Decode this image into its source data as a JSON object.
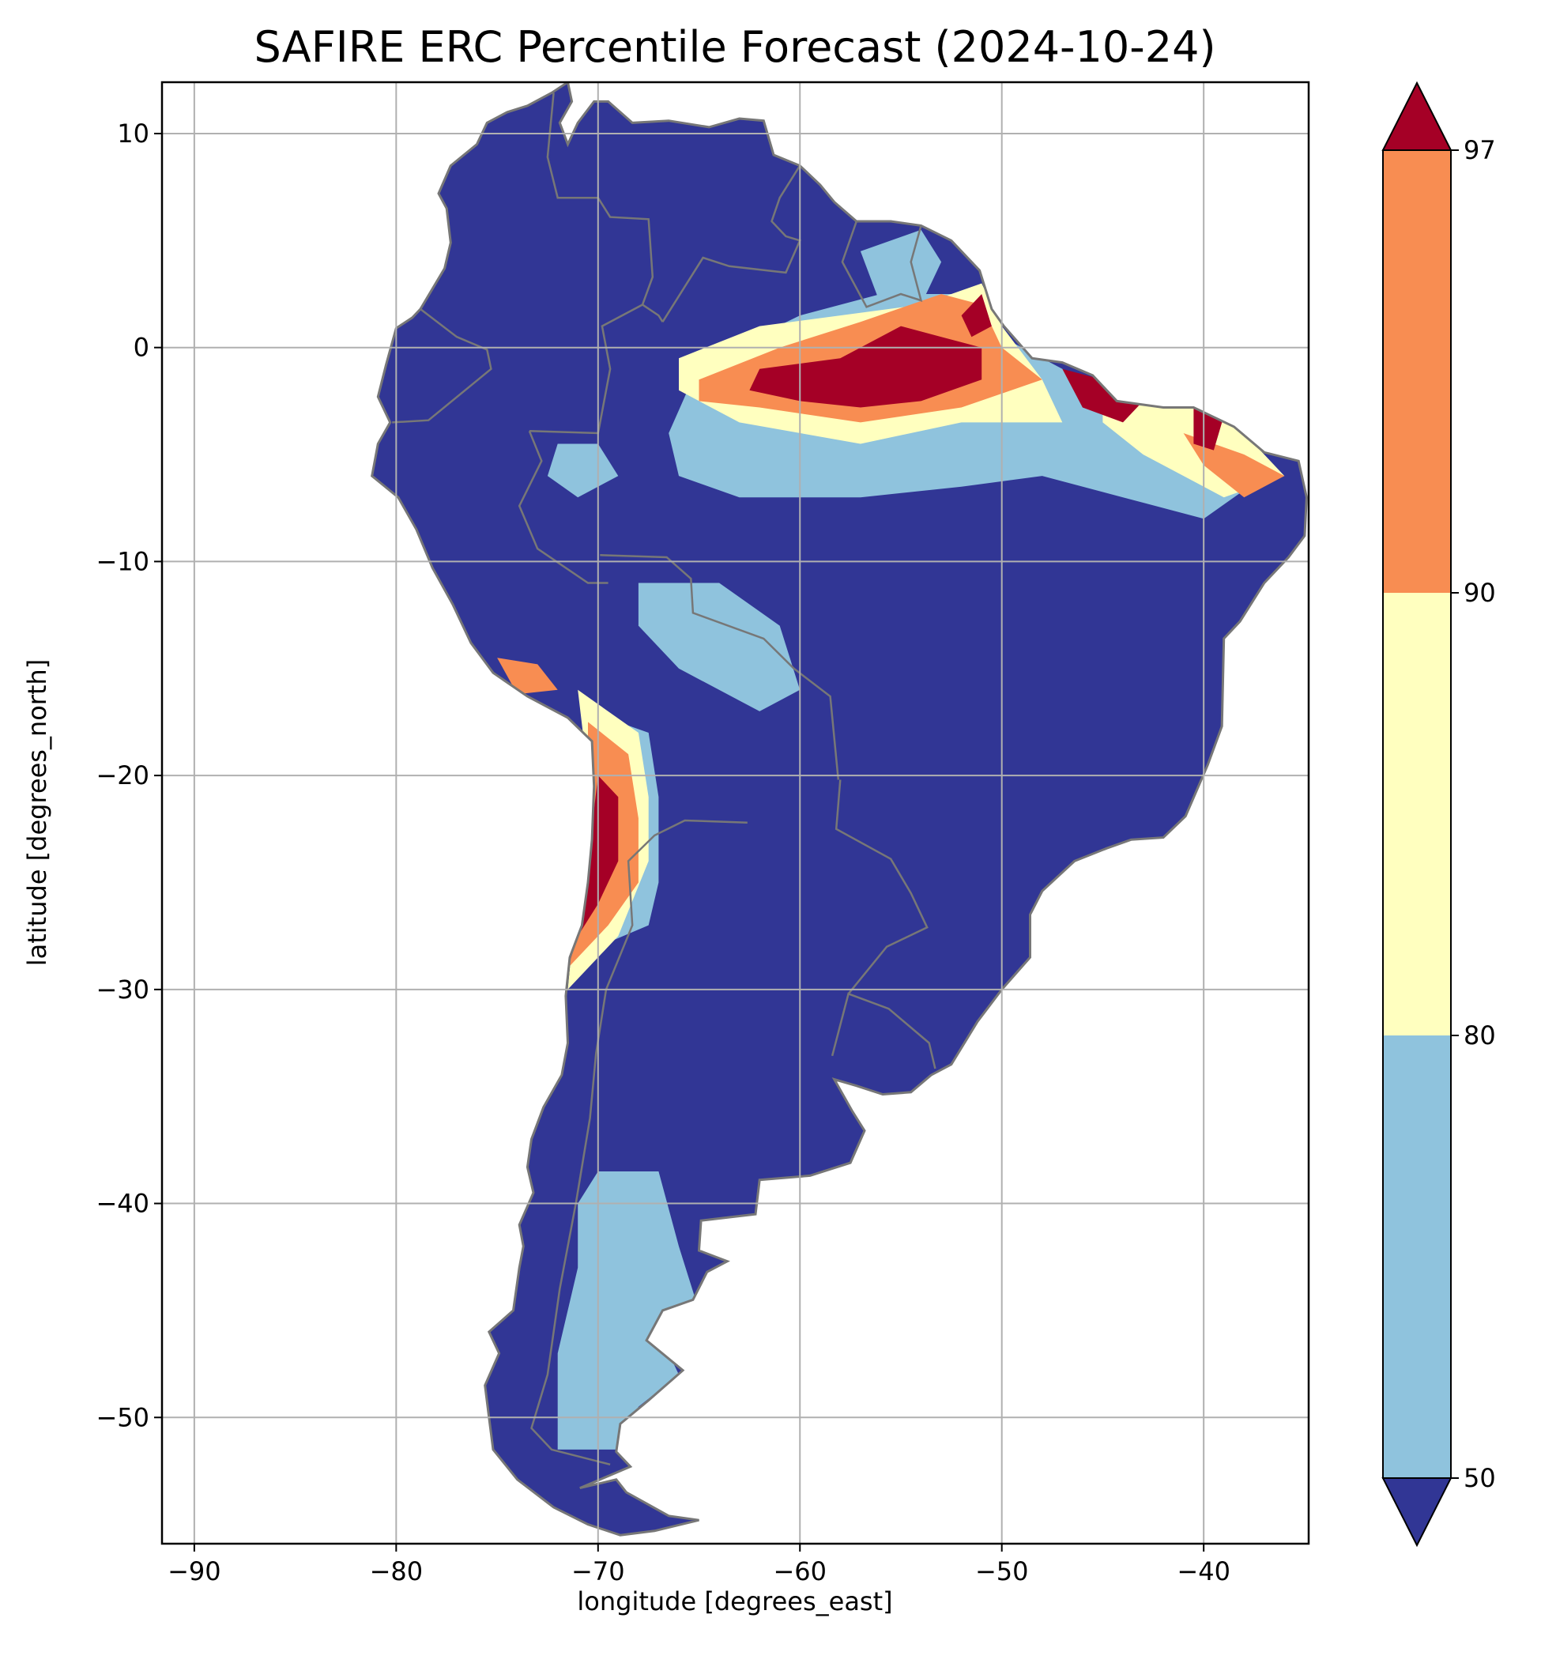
{
  "title": "SAFIRE ERC Percentile Forecast (2024-10-24)",
  "chart_data": {
    "type": "heatmap",
    "title": "SAFIRE ERC Percentile Forecast (2024-10-24)",
    "xlabel": "longitude [degrees_east]",
    "ylabel": "latitude [degrees_north]",
    "xlim": [
      -91.6,
      -34.8
    ],
    "ylim": [
      -55.9,
      12.4
    ],
    "x_ticks": [
      -90,
      -80,
      -70,
      -60,
      -50,
      -40
    ],
    "y_ticks": [
      10,
      0,
      -10,
      -20,
      -30,
      -40,
      -50
    ],
    "x_tick_labels": [
      "−90",
      "−80",
      "−70",
      "−60",
      "−50",
      "−40"
    ],
    "y_tick_labels": [
      "10",
      "0",
      "−10",
      "−20",
      "−30",
      "−40",
      "−50"
    ],
    "grid": true,
    "colorbar": {
      "levels": [
        50,
        80,
        90,
        97
      ],
      "tick_labels": [
        "50",
        "80",
        "90",
        "97"
      ],
      "extend": "both",
      "colors": {
        "below_50": "#313695",
        "50_80": "#8fc3dd",
        "80_90": "#ffffbf",
        "90_97": "#f88d52",
        "above_97": "#a50026"
      }
    },
    "land_default_class": "below_50",
    "coastline_color": "#777777",
    "regions": [
      {
        "class": "50_80",
        "name": "Amazon band",
        "points": [
          [
            -65,
            -0.8
          ],
          [
            -60,
            1.5
          ],
          [
            -56,
            2.5
          ],
          [
            -52,
            2.5
          ],
          [
            -50,
            0.5
          ],
          [
            -47,
            -1
          ],
          [
            -43,
            -2.5
          ],
          [
            -40,
            -3
          ],
          [
            -38,
            -4
          ],
          [
            -37,
            -6
          ],
          [
            -40,
            -8
          ],
          [
            -44,
            -7
          ],
          [
            -48,
            -6
          ],
          [
            -52,
            -6.5
          ],
          [
            -57,
            -7
          ],
          [
            -63,
            -7
          ],
          [
            -66,
            -6
          ],
          [
            -66.5,
            -4
          ]
        ]
      },
      {
        "class": "50_80",
        "name": "West Amazon patch",
        "points": [
          [
            -72,
            -4.5
          ],
          [
            -70,
            -4.5
          ],
          [
            -69,
            -6
          ],
          [
            -71,
            -7
          ],
          [
            -72.5,
            -6
          ]
        ]
      },
      {
        "class": "50_80",
        "name": "Guiana patch",
        "points": [
          [
            -57,
            4.5
          ],
          [
            -54,
            5.5
          ],
          [
            -53,
            4
          ],
          [
            -54,
            2
          ],
          [
            -56,
            2
          ]
        ]
      },
      {
        "class": "50_80",
        "name": "Bolivia patch",
        "points": [
          [
            -68,
            -11
          ],
          [
            -64,
            -11
          ],
          [
            -61,
            -13
          ],
          [
            -60,
            -16
          ],
          [
            -62,
            -17
          ],
          [
            -66,
            -15
          ],
          [
            -68,
            -13
          ]
        ]
      },
      {
        "class": "50_80",
        "name": "Patagonia",
        "points": [
          [
            -70,
            -38.5
          ],
          [
            -67,
            -38.5
          ],
          [
            -66,
            -42
          ],
          [
            -65,
            -45
          ],
          [
            -67,
            -46
          ],
          [
            -66,
            -48
          ],
          [
            -68,
            -49.5
          ],
          [
            -69,
            -51.5
          ],
          [
            -72,
            -51.5
          ],
          [
            -72,
            -47
          ],
          [
            -71,
            -43
          ],
          [
            -71,
            -40
          ]
        ]
      },
      {
        "class": "50_80",
        "name": "Andes flank",
        "points": [
          [
            -70.5,
            -17
          ],
          [
            -67.5,
            -18
          ],
          [
            -67,
            -21
          ],
          [
            -67,
            -25
          ],
          [
            -67.5,
            -27
          ],
          [
            -70,
            -28
          ],
          [
            -71.5,
            -29
          ],
          [
            -71,
            -25
          ],
          [
            -70.5,
            -21
          ]
        ]
      },
      {
        "class": "80_90",
        "name": "Amazon north band",
        "points": [
          [
            -66,
            -0.5
          ],
          [
            -62,
            1
          ],
          [
            -58,
            1.5
          ],
          [
            -54,
            2
          ],
          [
            -51,
            3
          ],
          [
            -50,
            1
          ],
          [
            -48,
            -1.5
          ],
          [
            -47,
            -3.5
          ],
          [
            -52,
            -3.5
          ],
          [
            -57,
            -4.5
          ],
          [
            -63,
            -3.5
          ],
          [
            -66,
            -2
          ]
        ]
      },
      {
        "class": "80_90",
        "name": "NE coast",
        "points": [
          [
            -45,
            -2
          ],
          [
            -41,
            -2.5
          ],
          [
            -38,
            -4
          ],
          [
            -36,
            -6
          ],
          [
            -39,
            -7
          ],
          [
            -43,
            -5
          ],
          [
            -45,
            -3.5
          ]
        ]
      },
      {
        "class": "80_90",
        "name": "Andes yellow",
        "points": [
          [
            -71,
            -16
          ],
          [
            -68,
            -18
          ],
          [
            -67.5,
            -21
          ],
          [
            -67.5,
            -24
          ],
          [
            -69,
            -27.5
          ],
          [
            -71.5,
            -30
          ],
          [
            -71,
            -25
          ],
          [
            -70.5,
            -20
          ]
        ]
      },
      {
        "class": "90_97",
        "name": "Amazon orange",
        "points": [
          [
            -65,
            -1.5
          ],
          [
            -61,
            0
          ],
          [
            -57,
            1.2
          ],
          [
            -53,
            2.5
          ],
          [
            -51,
            2
          ],
          [
            -50,
            0
          ],
          [
            -48,
            -1.5
          ],
          [
            -52,
            -2.8
          ],
          [
            -57,
            -3.5
          ],
          [
            -62,
            -2.8
          ],
          [
            -65,
            -2.5
          ]
        ]
      },
      {
        "class": "90_97",
        "name": "Andes orange",
        "points": [
          [
            -70.5,
            -17.5
          ],
          [
            -68.5,
            -19
          ],
          [
            -68,
            -22
          ],
          [
            -68,
            -25
          ],
          [
            -69.5,
            -27
          ],
          [
            -71.5,
            -29
          ],
          [
            -70.8,
            -24
          ],
          [
            -70.5,
            -20
          ]
        ]
      },
      {
        "class": "90_97",
        "name": "Peru coast",
        "points": [
          [
            -75,
            -14.5
          ],
          [
            -73,
            -14.8
          ],
          [
            -72,
            -16
          ],
          [
            -74,
            -16.2
          ]
        ]
      },
      {
        "class": "90_97",
        "name": "NE orange",
        "points": [
          [
            -41,
            -4
          ],
          [
            -38,
            -5
          ],
          [
            -36,
            -6
          ],
          [
            -38,
            -7
          ],
          [
            -40,
            -5.5
          ]
        ]
      },
      {
        "class": "above_97",
        "name": "Amazon red",
        "points": [
          [
            -62,
            -1
          ],
          [
            -58,
            -0.5
          ],
          [
            -55,
            1
          ],
          [
            -53,
            0.5
          ],
          [
            -51,
            0
          ],
          [
            -51,
            -1.5
          ],
          [
            -54,
            -2.5
          ],
          [
            -57,
            -2.8
          ],
          [
            -60,
            -2.5
          ],
          [
            -62.5,
            -2
          ]
        ]
      },
      {
        "class": "above_97",
        "name": "Amapa red",
        "points": [
          [
            -52,
            1.5
          ],
          [
            -51,
            2.5
          ],
          [
            -50.5,
            1
          ],
          [
            -51.5,
            0.5
          ]
        ]
      },
      {
        "class": "above_97",
        "name": "NE coast red",
        "points": [
          [
            -47,
            -1
          ],
          [
            -45,
            -1.5
          ],
          [
            -43,
            -2.5
          ],
          [
            -44,
            -3.5
          ],
          [
            -46,
            -2.8
          ]
        ]
      },
      {
        "class": "above_97",
        "name": "Ceara red",
        "points": [
          [
            -40.5,
            -2.8
          ],
          [
            -39,
            -3.2
          ],
          [
            -39.5,
            -4.8
          ],
          [
            -40.5,
            -4.5
          ]
        ]
      },
      {
        "class": "above_97",
        "name": "Atacama red",
        "points": [
          [
            -70,
            -20
          ],
          [
            -69,
            -21
          ],
          [
            -69,
            -24
          ],
          [
            -70,
            -26
          ],
          [
            -71,
            -27.5
          ],
          [
            -71.5,
            -29
          ],
          [
            -70.5,
            -24
          ]
        ]
      }
    ]
  }
}
